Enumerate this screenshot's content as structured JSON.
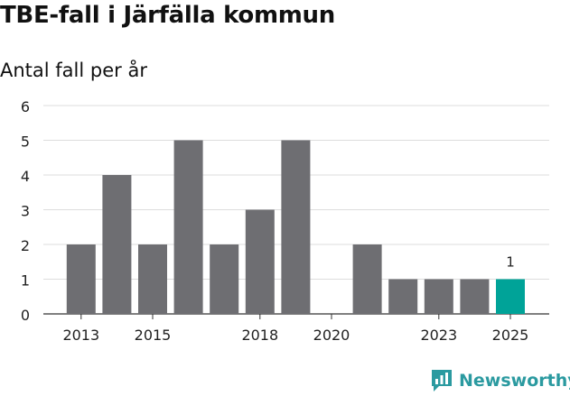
{
  "header": {
    "title": "TBE-fall i Järfälla kommun",
    "subtitle": "Antal fall per år"
  },
  "chart_data": {
    "type": "bar",
    "categories": [
      "2013",
      "2014",
      "2015",
      "2016",
      "2017",
      "2018",
      "2019",
      "2020",
      "2021",
      "2022",
      "2023",
      "2024",
      "2025"
    ],
    "values": [
      2,
      4,
      2,
      5,
      2,
      3,
      5,
      0,
      2,
      1,
      1,
      1,
      1
    ],
    "x_tick_labels": [
      "2013",
      "2015",
      "2018",
      "2020",
      "2023",
      "2025"
    ],
    "y_ticks": [
      0,
      1,
      2,
      3,
      4,
      5,
      6
    ],
    "ylim": [
      0,
      6
    ],
    "highlight": {
      "category": "2025",
      "label": "1"
    },
    "grid": true,
    "colors": {
      "bar": "#6e6e72",
      "highlight": "#00a398",
      "grid": "#dddddd"
    }
  },
  "branding": {
    "logo_text": "Newsworthy",
    "logo_icon": "newsworthy-bar-chart-icon",
    "logo_color": "#2b9aa0"
  }
}
